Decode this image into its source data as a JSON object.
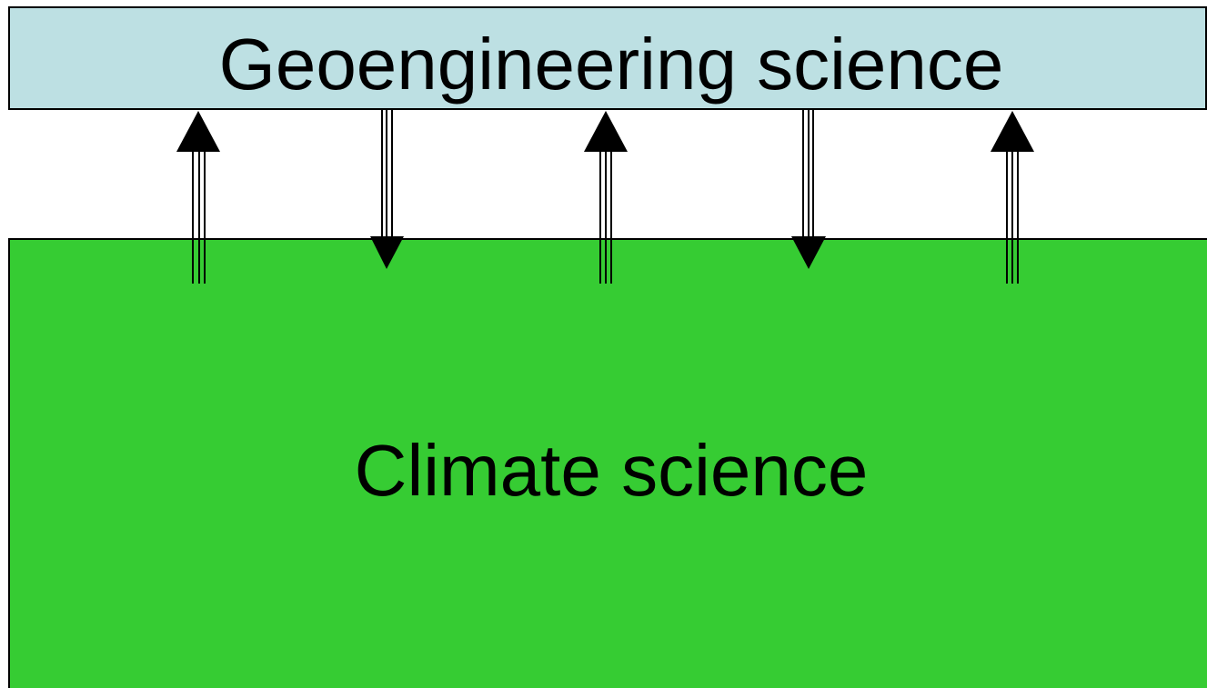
{
  "nodes": [
    {
      "label": "Geoengineering science"
    },
    {
      "label": "Climate science"
    }
  ]
}
